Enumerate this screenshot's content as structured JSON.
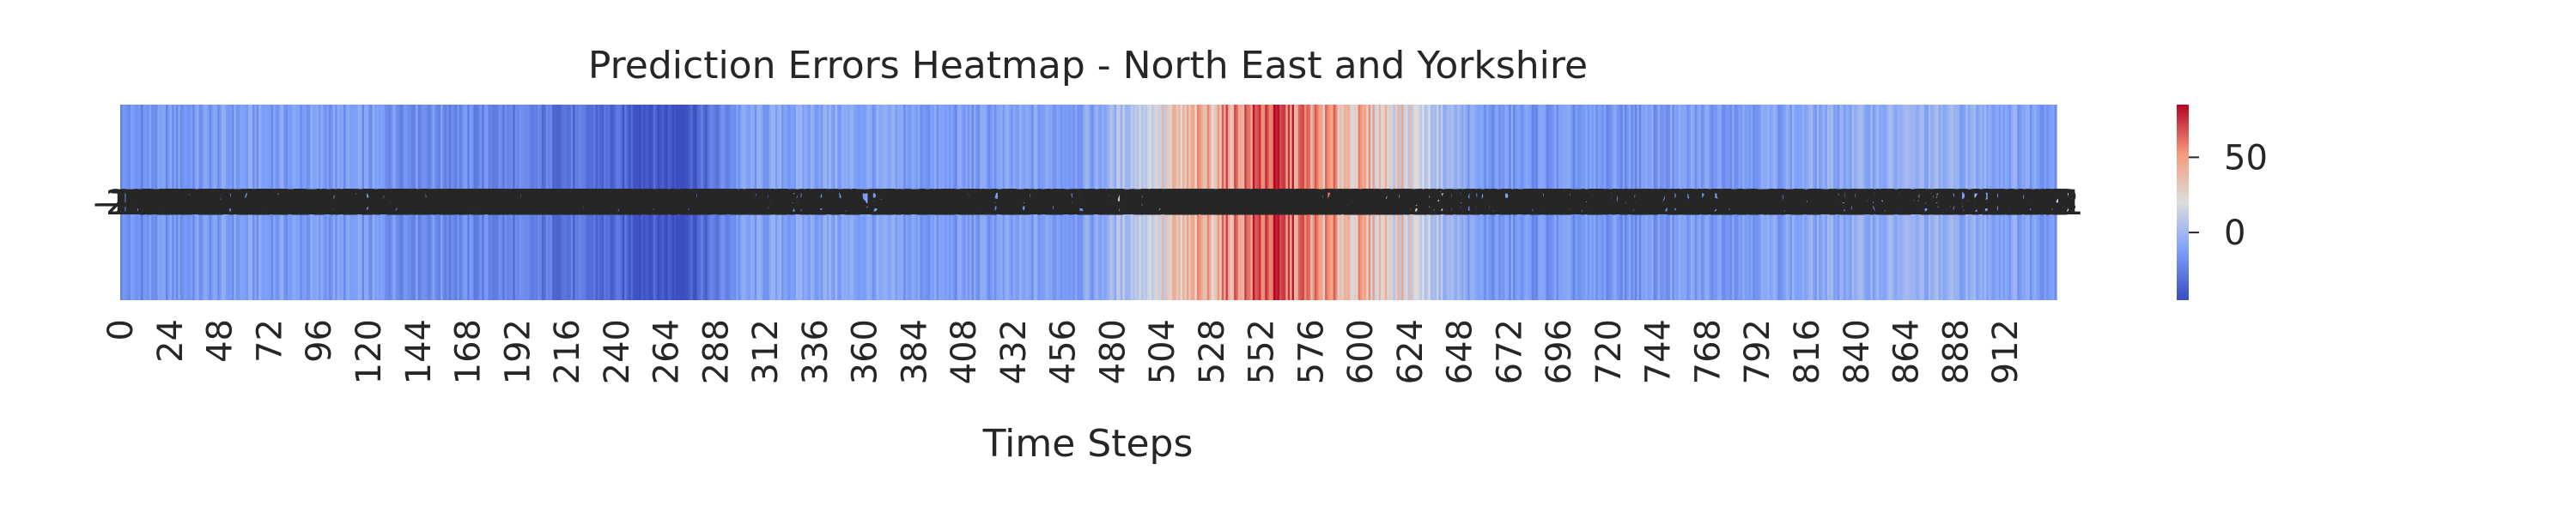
{
  "chart_data": {
    "type": "heatmap",
    "title": "Prediction Errors Heatmap - North East and Yorkshire",
    "xlabel": "Time Steps",
    "ylabel": "",
    "n_steps": 937,
    "x_tick_step": 24,
    "x_tick_labels": [
      "0",
      "24",
      "48",
      "72",
      "96",
      "120",
      "144",
      "168",
      "192",
      "216",
      "240",
      "264",
      "288",
      "312",
      "336",
      "360",
      "384",
      "408",
      "432",
      "456",
      "480",
      "504",
      "528",
      "552",
      "576",
      "600",
      "624",
      "648",
      "672",
      "696",
      "720",
      "744",
      "768",
      "792",
      "816",
      "840",
      "864",
      "888",
      "912"
    ],
    "colormap": "coolwarm",
    "color_range": [
      -45,
      85
    ],
    "colorbar_ticks": [
      50,
      0
    ],
    "colorbar_tick_labels": [
      "50",
      "0"
    ],
    "annotated_cells": true,
    "value_profile": [
      {
        "step": 0,
        "value": -18
      },
      {
        "step": 60,
        "value": -12
      },
      {
        "step": 120,
        "value": -14
      },
      {
        "step": 180,
        "value": -22
      },
      {
        "step": 230,
        "value": -32
      },
      {
        "step": 270,
        "value": -42
      },
      {
        "step": 285,
        "value": -30
      },
      {
        "step": 300,
        "value": -12
      },
      {
        "step": 340,
        "value": -8
      },
      {
        "step": 400,
        "value": -14
      },
      {
        "step": 470,
        "value": -10
      },
      {
        "step": 490,
        "value": 8
      },
      {
        "step": 530,
        "value": 45
      },
      {
        "step": 555,
        "value": 70
      },
      {
        "step": 580,
        "value": 48
      },
      {
        "step": 620,
        "value": 25
      },
      {
        "step": 640,
        "value": 2
      },
      {
        "step": 660,
        "value": -15
      },
      {
        "step": 720,
        "value": -16
      },
      {
        "step": 800,
        "value": -10
      },
      {
        "step": 860,
        "value": -4
      },
      {
        "step": 900,
        "value": -6
      },
      {
        "step": 936,
        "value": -12
      }
    ]
  }
}
